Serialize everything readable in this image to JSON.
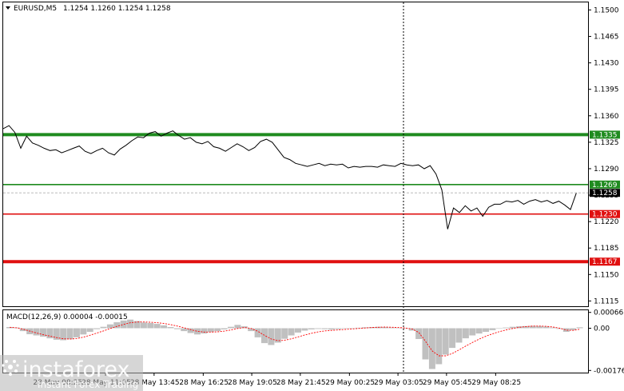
{
  "chart_data": {
    "type": "line",
    "symbol": "EURUSD,M5",
    "ohlc_readout": "1.1254 1.1260 1.1254 1.1258",
    "current_price_label": "1.1258",
    "y_ticks": [
      "1.1500",
      "1.1465",
      "1.1430",
      "1.1395",
      "1.1360",
      "1.1325",
      "1.1290",
      "1.1255",
      "1.1220",
      "1.1185",
      "1.1150",
      "1.1115"
    ],
    "ylim": [
      1.1108,
      1.151
    ],
    "x_ticks": [
      "28 May 08:25",
      "28 May 11:05",
      "28 May 13:45",
      "28 May 16:25",
      "28 May 19:05",
      "28 May 21:45",
      "29 May 00:25",
      "29 May 03:05",
      "29 May 05:45",
      "29 May 08:25"
    ],
    "x_range": [
      0,
      100
    ],
    "x_tick_positions": [
      9.2,
      17.5,
      25.8,
      34.2,
      42.5,
      50.8,
      59.2,
      67.5,
      75.8,
      84.2
    ],
    "levels": [
      {
        "value": 1.1335,
        "label": "1.1335",
        "color": "#1f8b1f",
        "style": "thick"
      },
      {
        "value": 1.1269,
        "label": "1.1269",
        "color": "#1f8b1f",
        "style": "thin"
      },
      {
        "value": 1.123,
        "label": "1.1230",
        "color": "#e01010",
        "style": "thin"
      },
      {
        "value": 1.1167,
        "label": "1.1167",
        "color": "#e01010",
        "style": "thick"
      }
    ],
    "series": [
      {
        "x": [
          0,
          1,
          2,
          3,
          3.5,
          4,
          5,
          6,
          7,
          8,
          9,
          10,
          11,
          12,
          13,
          14,
          15,
          16,
          17,
          18,
          19,
          20,
          21,
          22,
          23,
          24,
          25,
          26,
          27,
          28,
          29,
          30,
          31,
          32,
          33,
          34,
          35,
          36,
          37,
          38,
          39,
          40,
          41,
          42,
          43,
          44,
          45,
          46,
          47,
          48,
          49,
          50,
          51,
          52,
          53,
          54,
          55,
          56,
          57,
          58,
          59,
          60,
          61,
          62,
          63,
          64,
          65,
          66,
          67,
          68,
          69,
          70,
          71,
          72,
          73,
          74,
          75,
          76,
          77,
          78,
          79,
          80,
          81,
          82,
          83,
          84,
          85,
          86,
          87,
          88,
          89,
          90,
          91,
          92,
          93,
          94,
          95,
          96,
          97,
          98
        ],
        "y": [
          1.1343,
          1.1347,
          1.1338,
          1.1317,
          1.1325,
          1.1333,
          1.1324,
          1.1321,
          1.1317,
          1.1314,
          1.1315,
          1.1311,
          1.1314,
          1.1317,
          1.132,
          1.1313,
          1.131,
          1.1314,
          1.1317,
          1.1311,
          1.1308,
          1.1316,
          1.1321,
          1.1327,
          1.1332,
          1.1331,
          1.1337,
          1.1339,
          1.1333,
          1.1337,
          1.134,
          1.1334,
          1.1329,
          1.1331,
          1.1325,
          1.1323,
          1.1326,
          1.1319,
          1.1317,
          1.1313,
          1.1318,
          1.1323,
          1.1319,
          1.1314,
          1.1318,
          1.1326,
          1.1329,
          1.1325,
          1.1315,
          1.1305,
          1.1302,
          1.1297,
          1.1295,
          1.1293,
          1.1295,
          1.1297,
          1.1294,
          1.1296,
          1.1295,
          1.1296,
          1.1291,
          1.1293,
          1.1292,
          1.1293,
          1.1293,
          1.1292,
          1.1295,
          1.1294,
          1.1293,
          1.1297,
          1.1295,
          1.1294,
          1.1295,
          1.129,
          1.1294,
          1.1283,
          1.1262,
          1.121,
          1.1238,
          1.1232,
          1.1241,
          1.1234,
          1.1238,
          1.1227,
          1.1239,
          1.1243,
          1.1243,
          1.1247,
          1.1246,
          1.1248,
          1.1243,
          1.1247,
          1.1249,
          1.1246,
          1.1248,
          1.1244,
          1.1247,
          1.1242,
          1.1236,
          1.1258
        ]
      }
    ],
    "macd": {
      "label": "MACD(12,26,9) 0.00004 -0.00015",
      "y_ticks": [
        "0.00066",
        "0.00",
        "-0.00176"
      ],
      "ylim": [
        -0.00185,
        0.00075
      ],
      "histogram": [
        5e-05,
        3e-05,
        -0.00012,
        -0.00025,
        -0.0003,
        -0.00035,
        -0.00042,
        -0.00048,
        -0.0005,
        -0.00046,
        -0.00038,
        -0.00026,
        -0.00015,
        -4e-05,
        6e-05,
        0.00016,
        0.00025,
        0.00032,
        0.00036,
        0.0003,
        0.00024,
        0.00022,
        0.00018,
        0.00012,
        5e-05,
        -4e-05,
        -0.00012,
        -0.0002,
        -0.00026,
        -0.00022,
        -0.00016,
        -0.00012,
        -5e-05,
        6e-05,
        0.00014,
        8e-05,
        -0.00012,
        -0.00038,
        -0.00062,
        -0.0007,
        -0.0006,
        -0.00044,
        -0.0003,
        -0.00018,
        -0.0001,
        -5e-05,
        -3e-05,
        -4e-05,
        -6e-05,
        -4e-05,
        -2e-05,
        0.0,
        2e-05,
        4e-05,
        5e-05,
        6e-05,
        5e-05,
        3e-05,
        1e-05,
        -2e-05,
        -0.0001,
        -0.00045,
        -0.0013,
        -0.0017,
        -0.0015,
        -0.0011,
        -0.00082,
        -0.0006,
        -0.00042,
        -0.0003,
        -0.00022,
        -0.00015,
        -8e-05,
        -2e-05,
        3e-05,
        6e-05,
        8e-05,
        9e-05,
        0.0001,
        9e-05,
        7e-05,
        3e-05,
        -3e-05,
        -0.00015,
        -8e-05,
        4e-05
      ],
      "signal": [
        4e-05,
        2e-05,
        -4e-05,
        -0.00012,
        -0.0002,
        -0.00027,
        -0.00033,
        -0.00039,
        -0.00044,
        -0.00045,
        -0.00043,
        -0.00037,
        -0.00029,
        -0.0002,
        -0.00011,
        -1e-05,
        8e-05,
        0.00016,
        0.00023,
        0.00026,
        0.00026,
        0.00025,
        0.00023,
        0.0002,
        0.00015,
        9e-05,
        2e-05,
        -6e-05,
        -0.00013,
        -0.00016,
        -0.00016,
        -0.00015,
        -0.00012,
        -7e-05,
        -1e-05,
        3e-05,
        -1e-05,
        -0.00013,
        -0.0003,
        -0.00045,
        -0.00052,
        -0.0005,
        -0.00044,
        -0.00036,
        -0.00028,
        -0.00021,
        -0.00015,
        -0.00011,
        -9e-05,
        -7e-05,
        -5e-05,
        -3e-05,
        -1e-05,
        1e-05,
        3e-05,
        4e-05,
        5e-05,
        4e-05,
        3e-05,
        1e-05,
        -3e-05,
        -0.00018,
        -0.00055,
        -0.00095,
        -0.00115,
        -0.00115,
        -0.00105,
        -0.0009,
        -0.00074,
        -0.00059,
        -0.00045,
        -0.00033,
        -0.00023,
        -0.00014,
        -7e-05,
        -1e-05,
        4e-05,
        7e-05,
        9e-05,
        9e-05,
        8e-05,
        5e-05,
        0.0,
        -8e-05,
        -9e-05,
        -4e-05
      ]
    }
  },
  "watermark": {
    "brand": "instaforex",
    "tagline": "Instant Forex Trading"
  },
  "colors": {
    "price_line": "#000000",
    "grid": "#d8d8d8",
    "histogram": "#c0c0c0",
    "signal": "#ff0000",
    "current_price_tag": "#000000"
  }
}
